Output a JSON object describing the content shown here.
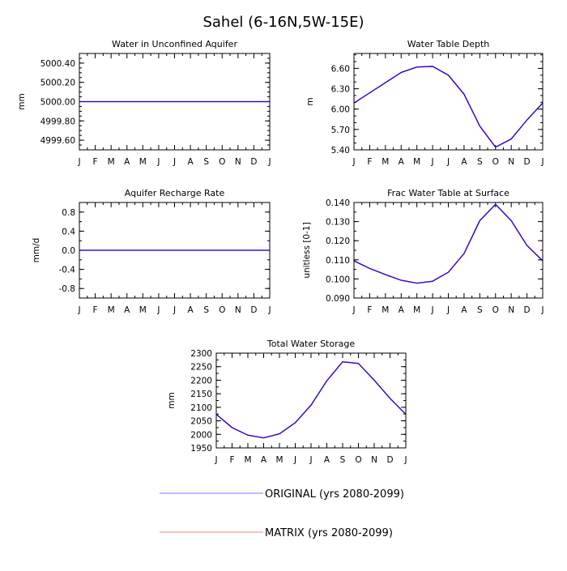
{
  "title": "Sahel (6-16N,5W-15E)",
  "legend": [
    {
      "label": "ORIGINAL (yrs 2080-2099)",
      "color": "#7b7bff"
    },
    {
      "label": "MATRIX (yrs 2080-2099)",
      "color": "#ff7b7b"
    }
  ],
  "overlay_color": "#3b00c8",
  "chart_data": [
    {
      "type": "line",
      "title": "Water in Unconfined Aquifer",
      "ylabel": "mm",
      "xlabel": "",
      "categories": [
        "J",
        "F",
        "M",
        "A",
        "M",
        "J",
        "J",
        "A",
        "S",
        "O",
        "N",
        "D",
        "J"
      ],
      "ylim": [
        4999.5,
        5000.5
      ],
      "yticks": [
        4999.6,
        4999.8,
        5000.0,
        5000.2,
        5000.4
      ],
      "ytick_labels": [
        "4999.60",
        "4999.80",
        "5000.00",
        "5000.20",
        "5000.40"
      ],
      "minor_step": 0.05,
      "series": [
        {
          "name": "ORIGINAL (yrs 2080-2099)",
          "values": [
            5000,
            5000,
            5000,
            5000,
            5000,
            5000,
            5000,
            5000,
            5000,
            5000,
            5000,
            5000,
            5000
          ]
        },
        {
          "name": "MATRIX (yrs 2080-2099)",
          "values": [
            5000,
            5000,
            5000,
            5000,
            5000,
            5000,
            5000,
            5000,
            5000,
            5000,
            5000,
            5000,
            5000
          ]
        }
      ]
    },
    {
      "type": "line",
      "title": "Water Table Depth",
      "ylabel": "m",
      "xlabel": "",
      "categories": [
        "J",
        "F",
        "M",
        "A",
        "M",
        "J",
        "J",
        "A",
        "S",
        "O",
        "N",
        "D",
        "J"
      ],
      "ylim": [
        5.4,
        6.82
      ],
      "yticks": [
        5.4,
        5.7,
        6.0,
        6.3,
        6.6
      ],
      "ytick_labels": [
        "5.40",
        "5.70",
        "6.00",
        "6.30",
        "6.60"
      ],
      "minor_step": 0.1,
      "series": [
        {
          "name": "ORIGINAL (yrs 2080-2099)",
          "values": [
            6.09,
            6.24,
            6.39,
            6.54,
            6.62,
            6.63,
            6.5,
            6.22,
            5.75,
            5.44,
            5.56,
            5.84,
            6.09
          ]
        },
        {
          "name": "MATRIX (yrs 2080-2099)",
          "values": [
            6.09,
            6.24,
            6.39,
            6.54,
            6.62,
            6.63,
            6.5,
            6.22,
            5.75,
            5.44,
            5.56,
            5.84,
            6.09
          ]
        }
      ]
    },
    {
      "type": "line",
      "title": "Aquifer Recharge Rate",
      "ylabel": "mm/d",
      "xlabel": "",
      "categories": [
        "J",
        "F",
        "M",
        "A",
        "M",
        "J",
        "J",
        "A",
        "S",
        "O",
        "N",
        "D",
        "J"
      ],
      "ylim": [
        -1.0,
        1.0
      ],
      "yticks": [
        -0.8,
        -0.4,
        0.0,
        0.4,
        0.8
      ],
      "ytick_labels": [
        "-0.8",
        "-0.4",
        "0.0",
        "0.4",
        "0.8"
      ],
      "minor_step": 0.2,
      "series": [
        {
          "name": "ORIGINAL (yrs 2080-2099)",
          "values": [
            0,
            0,
            0,
            0,
            0,
            0,
            0,
            0,
            0,
            0,
            0,
            0,
            0
          ]
        },
        {
          "name": "MATRIX (yrs 2080-2099)",
          "values": [
            0,
            0,
            0,
            0,
            0,
            0,
            0,
            0,
            0,
            0,
            0,
            0,
            0
          ]
        }
      ]
    },
    {
      "type": "line",
      "title": "Frac Water Table at Surface",
      "ylabel": "unitless [0-1]",
      "xlabel": "",
      "categories": [
        "J",
        "F",
        "M",
        "A",
        "M",
        "J",
        "J",
        "A",
        "S",
        "O",
        "N",
        "D",
        "J"
      ],
      "ylim": [
        0.09,
        0.14
      ],
      "yticks": [
        0.09,
        0.1,
        0.11,
        0.12,
        0.13,
        0.14
      ],
      "ytick_labels": [
        "0.090",
        "0.100",
        "0.110",
        "0.120",
        "0.130",
        "0.140"
      ],
      "minor_step": 0.005,
      "series": [
        {
          "name": "ORIGINAL (yrs 2080-2099)",
          "values": [
            0.1095,
            0.1055,
            0.1023,
            0.0993,
            0.0978,
            0.0988,
            0.1035,
            0.1133,
            0.1305,
            0.139,
            0.1305,
            0.1175,
            0.1095
          ]
        },
        {
          "name": "MATRIX (yrs 2080-2099)",
          "values": [
            0.1095,
            0.1055,
            0.1023,
            0.0993,
            0.0978,
            0.0988,
            0.1035,
            0.1133,
            0.1305,
            0.139,
            0.1305,
            0.1175,
            0.1095
          ]
        }
      ]
    },
    {
      "type": "line",
      "title": "Total Water Storage",
      "ylabel": "mm",
      "xlabel": "",
      "categories": [
        "J",
        "F",
        "M",
        "A",
        "M",
        "J",
        "J",
        "A",
        "S",
        "O",
        "N",
        "D",
        "J"
      ],
      "ylim": [
        1950,
        2300
      ],
      "yticks": [
        1950,
        2000,
        2050,
        2100,
        2150,
        2200,
        2250,
        2300
      ],
      "ytick_labels": [
        "1950",
        "2000",
        "2050",
        "2100",
        "2150",
        "2200",
        "2250",
        "2300"
      ],
      "minor_step": 25,
      "series": [
        {
          "name": "ORIGINAL (yrs 2080-2099)",
          "values": [
            2074,
            2025,
            1997,
            1987,
            2002,
            2043,
            2108,
            2198,
            2268,
            2262,
            2200,
            2133,
            2074
          ]
        },
        {
          "name": "MATRIX (yrs 2080-2099)",
          "values": [
            2074,
            2025,
            1997,
            1987,
            2002,
            2043,
            2108,
            2198,
            2268,
            2262,
            2200,
            2133,
            2074
          ]
        }
      ]
    }
  ]
}
